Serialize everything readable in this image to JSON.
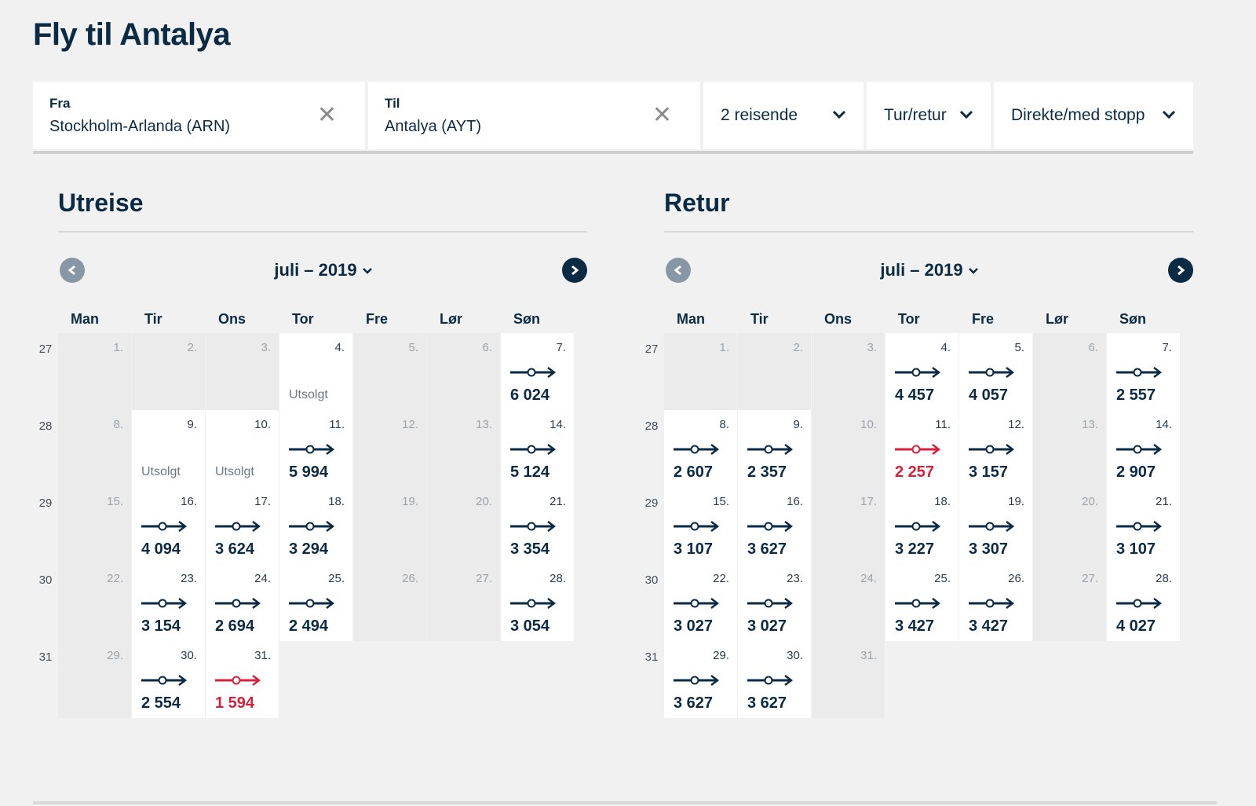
{
  "page": {
    "title": "Fly til Antalya"
  },
  "search": {
    "from_label": "Fra",
    "from_value": "Stockholm-Arlanda (ARN)",
    "to_label": "Til",
    "to_value": "Antalya (AYT)",
    "clear_symbol": "✕",
    "passengers": "2 reisende",
    "trip_type": "Tur/retur",
    "stops": "Direkte/med stopp"
  },
  "colors": {
    "primary": "#0b2a44",
    "cheapest": "#d6213c",
    "unavailable_cell": "#ebebeb",
    "background": "#f1f1f1"
  },
  "calendars": [
    {
      "title": "Utreise",
      "month": "juli – 2019",
      "weekdays": [
        "Man",
        "Tir",
        "Ons",
        "Tor",
        "Fre",
        "Lør",
        "Søn"
      ],
      "weeks": [
        "27",
        "28",
        "29",
        "30",
        "31"
      ],
      "start_weekday": 0,
      "days": [
        {
          "d": "1.",
          "s": "none"
        },
        {
          "d": "2.",
          "s": "none"
        },
        {
          "d": "3.",
          "s": "none"
        },
        {
          "d": "4.",
          "s": "soldout",
          "label": "Utsolgt"
        },
        {
          "d": "5.",
          "s": "none"
        },
        {
          "d": "6.",
          "s": "none"
        },
        {
          "d": "7.",
          "s": "avail",
          "price": "6 024"
        },
        {
          "d": "8.",
          "s": "none"
        },
        {
          "d": "9.",
          "s": "soldout",
          "label": "Utsolgt"
        },
        {
          "d": "10.",
          "s": "soldout",
          "label": "Utsolgt"
        },
        {
          "d": "11.",
          "s": "avail",
          "price": "5 994"
        },
        {
          "d": "12.",
          "s": "none"
        },
        {
          "d": "13.",
          "s": "none"
        },
        {
          "d": "14.",
          "s": "avail",
          "price": "5 124"
        },
        {
          "d": "15.",
          "s": "none"
        },
        {
          "d": "16.",
          "s": "avail",
          "price": "4 094"
        },
        {
          "d": "17.",
          "s": "avail",
          "price": "3 624"
        },
        {
          "d": "18.",
          "s": "avail",
          "price": "3 294"
        },
        {
          "d": "19.",
          "s": "none"
        },
        {
          "d": "20.",
          "s": "none"
        },
        {
          "d": "21.",
          "s": "avail",
          "price": "3 354"
        },
        {
          "d": "22.",
          "s": "none"
        },
        {
          "d": "23.",
          "s": "avail",
          "price": "3 154"
        },
        {
          "d": "24.",
          "s": "avail",
          "price": "2 694"
        },
        {
          "d": "25.",
          "s": "avail",
          "price": "2 494"
        },
        {
          "d": "26.",
          "s": "none"
        },
        {
          "d": "27.",
          "s": "none"
        },
        {
          "d": "28.",
          "s": "avail",
          "price": "3 054"
        },
        {
          "d": "29.",
          "s": "none"
        },
        {
          "d": "30.",
          "s": "avail",
          "price": "2 554"
        },
        {
          "d": "31.",
          "s": "avail",
          "price": "1 594",
          "cheapest": true
        }
      ]
    },
    {
      "title": "Retur",
      "month": "juli – 2019",
      "weekdays": [
        "Man",
        "Tir",
        "Ons",
        "Tor",
        "Fre",
        "Lør",
        "Søn"
      ],
      "weeks": [
        "27",
        "28",
        "29",
        "30",
        "31"
      ],
      "start_weekday": 0,
      "days": [
        {
          "d": "1.",
          "s": "none"
        },
        {
          "d": "2.",
          "s": "none"
        },
        {
          "d": "3.",
          "s": "none"
        },
        {
          "d": "4.",
          "s": "avail",
          "price": "4 457"
        },
        {
          "d": "5.",
          "s": "avail",
          "price": "4 057"
        },
        {
          "d": "6.",
          "s": "none"
        },
        {
          "d": "7.",
          "s": "avail",
          "price": "2 557"
        },
        {
          "d": "8.",
          "s": "avail",
          "price": "2 607"
        },
        {
          "d": "9.",
          "s": "avail",
          "price": "2 357"
        },
        {
          "d": "10.",
          "s": "none"
        },
        {
          "d": "11.",
          "s": "avail",
          "price": "2 257",
          "cheapest": true
        },
        {
          "d": "12.",
          "s": "avail",
          "price": "3 157"
        },
        {
          "d": "13.",
          "s": "none"
        },
        {
          "d": "14.",
          "s": "avail",
          "price": "2 907"
        },
        {
          "d": "15.",
          "s": "avail",
          "price": "3 107"
        },
        {
          "d": "16.",
          "s": "avail",
          "price": "3 627"
        },
        {
          "d": "17.",
          "s": "none"
        },
        {
          "d": "18.",
          "s": "avail",
          "price": "3 227"
        },
        {
          "d": "19.",
          "s": "avail",
          "price": "3 307"
        },
        {
          "d": "20.",
          "s": "none"
        },
        {
          "d": "21.",
          "s": "avail",
          "price": "3 107"
        },
        {
          "d": "22.",
          "s": "avail",
          "price": "3 027"
        },
        {
          "d": "23.",
          "s": "avail",
          "price": "3 027"
        },
        {
          "d": "24.",
          "s": "none"
        },
        {
          "d": "25.",
          "s": "avail",
          "price": "3 427"
        },
        {
          "d": "26.",
          "s": "avail",
          "price": "3 427"
        },
        {
          "d": "27.",
          "s": "none"
        },
        {
          "d": "28.",
          "s": "avail",
          "price": "4 027"
        },
        {
          "d": "29.",
          "s": "avail",
          "price": "3 627"
        },
        {
          "d": "30.",
          "s": "avail",
          "price": "3 627"
        },
        {
          "d": "31.",
          "s": "none"
        }
      ]
    }
  ]
}
